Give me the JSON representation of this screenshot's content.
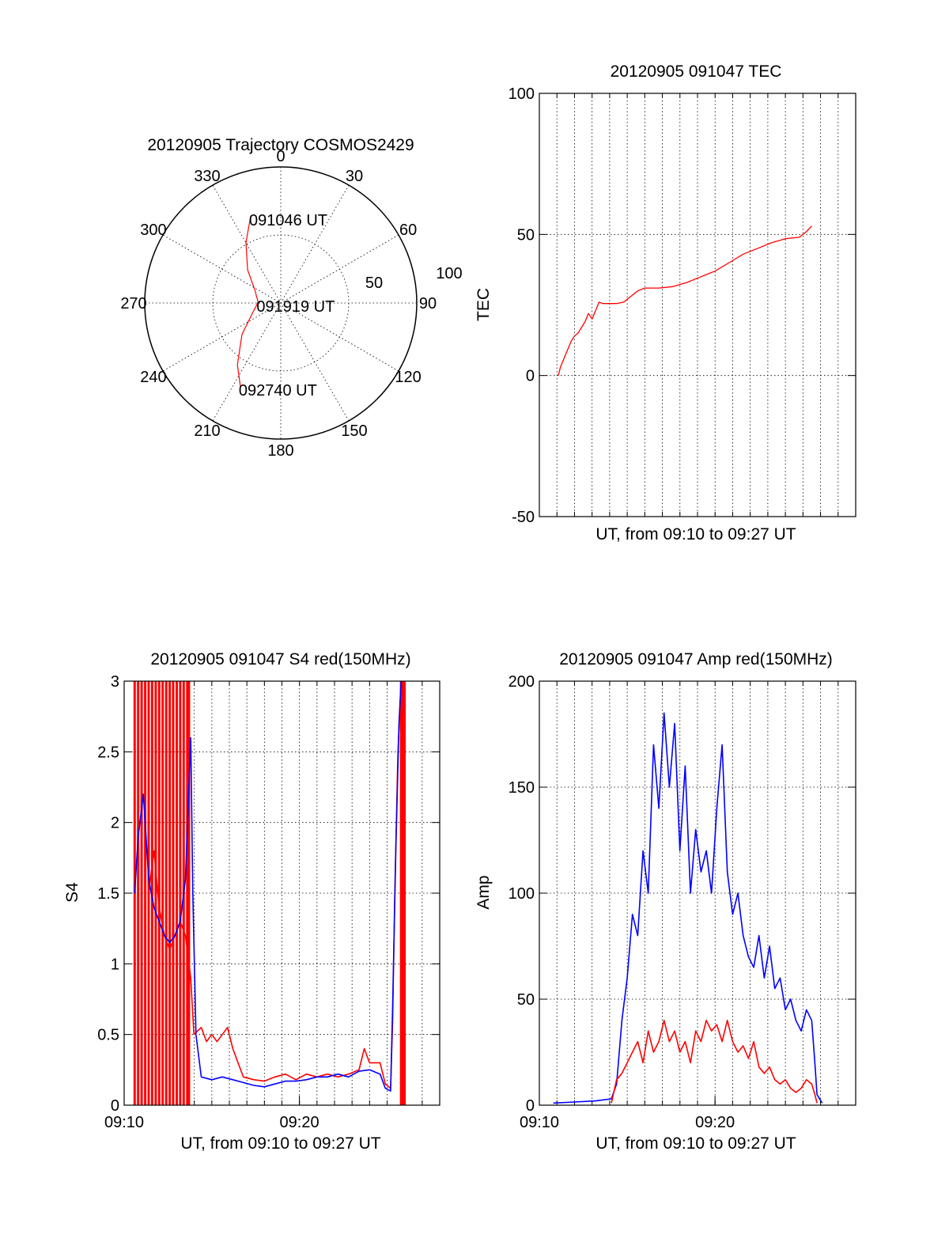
{
  "chart_data": [
    {
      "type": "polar",
      "title": "20120905 Trajectory COSMOS2429",
      "angle_labels": [
        "0",
        "30",
        "60",
        "90",
        "120",
        "150",
        "180",
        "210",
        "240",
        "270",
        "300",
        "330"
      ],
      "radial_labels": [
        "50",
        "100"
      ],
      "series": [
        {
          "color": "#ff0000",
          "points": [
            {
              "az": 341,
              "el": 29
            },
            {
              "az": 330,
              "el": 44
            },
            {
              "az": 315,
              "el": 59
            },
            {
              "az": 296,
              "el": 71
            },
            {
              "az": 272,
              "el": 75
            },
            {
              "az": 250,
              "el": 70
            },
            {
              "az": 231,
              "el": 57
            },
            {
              "az": 215,
              "el": 40
            },
            {
              "az": 206,
              "el": 29
            }
          ]
        }
      ],
      "annotations": [
        {
          "text": "091046 UT",
          "az": 341,
          "el": 29
        },
        {
          "text": "091919 UT",
          "az": 272,
          "el": 75
        },
        {
          "text": "092740 UT",
          "az": 206,
          "el": 29
        }
      ]
    },
    {
      "type": "line",
      "title": "20120905 091047 TEC",
      "xlabel": "UT, from 09:10 to 09:27 UT",
      "ylabel": "TEC",
      "xlim": [
        9.1667,
        9.4667
      ],
      "ylim": [
        -50,
        100
      ],
      "yticks": [
        "-50",
        "0",
        "50",
        "100"
      ],
      "xticks": [],
      "series": [
        {
          "color": "#ff0000",
          "points": [
            [
              9.1847,
              0
            ],
            [
              9.1867,
              3
            ],
            [
              9.19,
              6
            ],
            [
              9.1933,
              9
            ],
            [
              9.1967,
              12
            ],
            [
              9.2,
              14
            ],
            [
              9.2033,
              15
            ],
            [
              9.2067,
              17
            ],
            [
              9.21,
              19
            ],
            [
              9.2133,
              22
            ],
            [
              9.2167,
              20
            ],
            [
              9.22,
              23
            ],
            [
              9.2233,
              26
            ],
            [
              9.2267,
              25.5
            ],
            [
              9.2333,
              25.5
            ],
            [
              9.24,
              25.5
            ],
            [
              9.2467,
              26
            ],
            [
              9.2533,
              28
            ],
            [
              9.26,
              30
            ],
            [
              9.2667,
              31
            ],
            [
              9.28,
              31
            ],
            [
              9.2933,
              31.5
            ],
            [
              9.3067,
              33
            ],
            [
              9.32,
              35
            ],
            [
              9.3333,
              37
            ],
            [
              9.3467,
              40
            ],
            [
              9.36,
              43
            ],
            [
              9.3733,
              45
            ],
            [
              9.3867,
              47
            ],
            [
              9.4,
              48.5
            ],
            [
              9.4133,
              49
            ],
            [
              9.42,
              51
            ],
            [
              9.425,
              53
            ]
          ]
        }
      ]
    },
    {
      "type": "line",
      "title": "20120905 091047 S4 red(150MHz)",
      "xlabel": "UT, from 09:10 to 09:27 UT",
      "ylabel": "S4",
      "xlim": [
        9.1667,
        9.4667
      ],
      "ylim": [
        0,
        3
      ],
      "yticks": [
        "0",
        "0.5",
        "1",
        "1.5",
        "2",
        "2.5",
        "3"
      ],
      "xticks": [
        {
          "x": 9.1667,
          "label": "09:10"
        },
        {
          "x": 9.3333,
          "label": "09:20"
        }
      ],
      "series": [
        {
          "color": "#ff0000",
          "points": [
            [
              9.19,
              1.5
            ],
            [
              9.195,
              1.8
            ],
            [
              9.2,
              1.4
            ],
            [
              9.205,
              1.2
            ],
            [
              9.21,
              1.1
            ],
            [
              9.215,
              1.2
            ],
            [
              9.22,
              1.3
            ],
            [
              9.225,
              1.2
            ],
            [
              9.23,
              0.9
            ],
            [
              9.233,
              0.5
            ],
            [
              9.24,
              0.55
            ],
            [
              9.245,
              0.45
            ],
            [
              9.25,
              0.5
            ],
            [
              9.255,
              0.45
            ],
            [
              9.26,
              0.5
            ],
            [
              9.265,
              0.55
            ],
            [
              9.27,
              0.4
            ],
            [
              9.275,
              0.3
            ],
            [
              9.28,
              0.2
            ],
            [
              9.29,
              0.18
            ],
            [
              9.3,
              0.17
            ],
            [
              9.31,
              0.2
            ],
            [
              9.32,
              0.22
            ],
            [
              9.33,
              0.18
            ],
            [
              9.34,
              0.22
            ],
            [
              9.35,
              0.2
            ],
            [
              9.36,
              0.22
            ],
            [
              9.37,
              0.2
            ],
            [
              9.38,
              0.22
            ],
            [
              9.39,
              0.25
            ],
            [
              9.395,
              0.4
            ],
            [
              9.4,
              0.3
            ],
            [
              9.405,
              0.3
            ],
            [
              9.41,
              0.3
            ],
            [
              9.415,
              0.15
            ],
            [
              9.42,
              0.12
            ],
            [
              9.422,
              0.6
            ],
            [
              9.424,
              1.5
            ],
            [
              9.427,
              2.5
            ],
            [
              9.43,
              3.0
            ]
          ],
          "spikes": [
            9.1767,
            9.18,
            9.1833,
            9.1867,
            9.19,
            9.1933,
            9.1967,
            9.2,
            9.2033,
            9.2067,
            9.21,
            9.2133,
            9.2167,
            9.22,
            9.2233,
            9.2267,
            9.2283,
            9.43,
            9.432,
            9.4333
          ]
        },
        {
          "color": "#0000ff",
          "points": [
            [
              9.1767,
              1.5
            ],
            [
              9.18,
              1.9
            ],
            [
              9.185,
              2.2
            ],
            [
              9.19,
              1.6
            ],
            [
              9.195,
              1.4
            ],
            [
              9.2,
              1.3
            ],
            [
              9.205,
              1.2
            ],
            [
              9.21,
              1.15
            ],
            [
              9.215,
              1.2
            ],
            [
              9.22,
              1.3
            ],
            [
              9.225,
              1.6
            ],
            [
              9.23,
              2.6
            ],
            [
              9.232,
              1.5
            ],
            [
              9.235,
              0.5
            ],
            [
              9.24,
              0.2
            ],
            [
              9.25,
              0.18
            ],
            [
              9.26,
              0.2
            ],
            [
              9.27,
              0.18
            ],
            [
              9.28,
              0.16
            ],
            [
              9.29,
              0.14
            ],
            [
              9.3,
              0.13
            ],
            [
              9.31,
              0.15
            ],
            [
              9.32,
              0.17
            ],
            [
              9.33,
              0.17
            ],
            [
              9.34,
              0.18
            ],
            [
              9.35,
              0.2
            ],
            [
              9.36,
              0.2
            ],
            [
              9.37,
              0.22
            ],
            [
              9.38,
              0.2
            ],
            [
              9.39,
              0.24
            ],
            [
              9.4,
              0.25
            ],
            [
              9.41,
              0.22
            ],
            [
              9.415,
              0.12
            ],
            [
              9.42,
              0.1
            ],
            [
              9.422,
              0.7
            ],
            [
              9.425,
              1.8
            ],
            [
              9.428,
              2.7
            ],
            [
              9.43,
              3.0
            ]
          ]
        }
      ]
    },
    {
      "type": "line",
      "title": "20120905 091047 Amp red(150MHz)",
      "xlabel": "UT, from 09:10 to 09:27 UT",
      "ylabel": "Amp",
      "xlim": [
        9.1667,
        9.4667
      ],
      "ylim": [
        0,
        200
      ],
      "yticks": [
        "0",
        "50",
        "100",
        "150",
        "200"
      ],
      "xticks": [
        {
          "x": 9.1667,
          "label": "09:10"
        },
        {
          "x": 9.3333,
          "label": "09:20"
        }
      ],
      "series": [
        {
          "color": "#0000ff",
          "points": [
            [
              9.18,
              1
            ],
            [
              9.2,
              1.5
            ],
            [
              9.22,
              2
            ],
            [
              9.235,
              3
            ],
            [
              9.24,
              10
            ],
            [
              9.245,
              40
            ],
            [
              9.25,
              60
            ],
            [
              9.255,
              90
            ],
            [
              9.26,
              80
            ],
            [
              9.265,
              120
            ],
            [
              9.27,
              100
            ],
            [
              9.275,
              170
            ],
            [
              9.28,
              140
            ],
            [
              9.285,
              185
            ],
            [
              9.29,
              150
            ],
            [
              9.295,
              180
            ],
            [
              9.3,
              120
            ],
            [
              9.305,
              160
            ],
            [
              9.31,
              100
            ],
            [
              9.315,
              130
            ],
            [
              9.32,
              110
            ],
            [
              9.325,
              120
            ],
            [
              9.33,
              100
            ],
            [
              9.335,
              140
            ],
            [
              9.34,
              170
            ],
            [
              9.345,
              110
            ],
            [
              9.35,
              90
            ],
            [
              9.355,
              100
            ],
            [
              9.36,
              80
            ],
            [
              9.365,
              70
            ],
            [
              9.37,
              65
            ],
            [
              9.375,
              80
            ],
            [
              9.38,
              60
            ],
            [
              9.385,
              75
            ],
            [
              9.39,
              55
            ],
            [
              9.395,
              60
            ],
            [
              9.4,
              45
            ],
            [
              9.405,
              50
            ],
            [
              9.41,
              40
            ],
            [
              9.415,
              35
            ],
            [
              9.42,
              45
            ],
            [
              9.425,
              40
            ],
            [
              9.428,
              20
            ],
            [
              9.43,
              5
            ],
            [
              9.435,
              1
            ]
          ]
        },
        {
          "color": "#ff0000",
          "points": [
            [
              9.235,
              1
            ],
            [
              9.24,
              12
            ],
            [
              9.245,
              15
            ],
            [
              9.25,
              20
            ],
            [
              9.255,
              25
            ],
            [
              9.26,
              30
            ],
            [
              9.265,
              20
            ],
            [
              9.27,
              35
            ],
            [
              9.275,
              25
            ],
            [
              9.28,
              30
            ],
            [
              9.285,
              40
            ],
            [
              9.29,
              30
            ],
            [
              9.295,
              35
            ],
            [
              9.3,
              25
            ],
            [
              9.305,
              30
            ],
            [
              9.31,
              20
            ],
            [
              9.315,
              35
            ],
            [
              9.32,
              30
            ],
            [
              9.325,
              40
            ],
            [
              9.33,
              35
            ],
            [
              9.335,
              38
            ],
            [
              9.34,
              30
            ],
            [
              9.345,
              40
            ],
            [
              9.35,
              30
            ],
            [
              9.355,
              25
            ],
            [
              9.36,
              28
            ],
            [
              9.365,
              22
            ],
            [
              9.37,
              30
            ],
            [
              9.375,
              18
            ],
            [
              9.38,
              15
            ],
            [
              9.385,
              18
            ],
            [
              9.39,
              12
            ],
            [
              9.395,
              10
            ],
            [
              9.4,
              12
            ],
            [
              9.405,
              8
            ],
            [
              9.41,
              6
            ],
            [
              9.415,
              8
            ],
            [
              9.42,
              12
            ],
            [
              9.425,
              10
            ],
            [
              9.428,
              5
            ],
            [
              9.43,
              1
            ]
          ]
        }
      ]
    }
  ]
}
